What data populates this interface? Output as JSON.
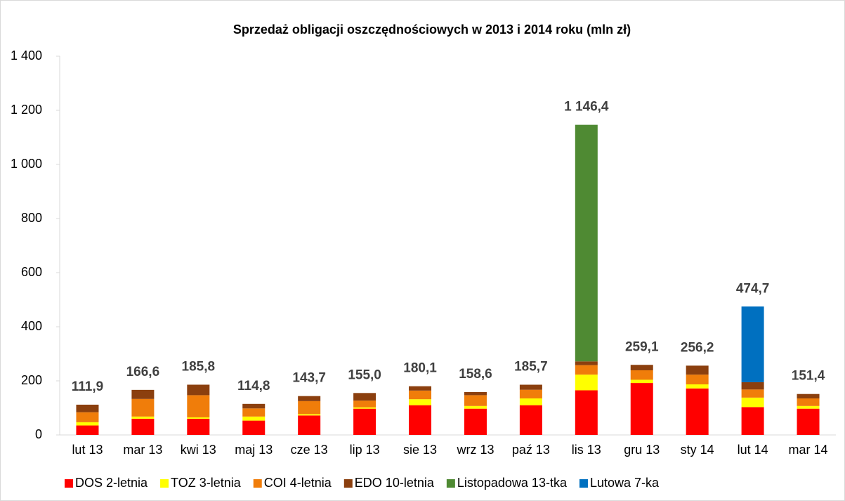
{
  "chart_data": {
    "type": "stacked_bar",
    "title": "Sprzedaż obligacji oszczędnościowych w 2013 i 2014 roku (mln zł)",
    "categories": [
      "lut 13",
      "mar 13",
      "kwi 13",
      "maj 13",
      "cze 13",
      "lip 13",
      "sie 13",
      "wrz 13",
      "paź 13",
      "lis 13",
      "gru 13",
      "sty 14",
      "lut 14",
      "mar 14"
    ],
    "series": [
      {
        "name": "DOS 2-letnia",
        "color": "#ff0000",
        "values": [
          35,
          60,
          60,
          53,
          72,
          97,
          110,
          97,
          110,
          165,
          192,
          172,
          103,
          97
        ]
      },
      {
        "name": "TOZ 3-letnia",
        "color": "#ffff00",
        "values": [
          12,
          8,
          5,
          15,
          5,
          5,
          22,
          10,
          25,
          58,
          12,
          15,
          35,
          10
        ]
      },
      {
        "name": "COI 4-letnia",
        "color": "#f07d0a",
        "values": [
          37,
          65,
          82,
          30,
          48,
          25,
          32,
          40,
          32,
          35,
          35,
          36,
          30,
          28
        ]
      },
      {
        "name": "EDO 10-letnia",
        "color": "#8b3f0e",
        "values": [
          27.9,
          33.6,
          38.8,
          16.8,
          18.7,
          28,
          16.1,
          11.6,
          18.7,
          14,
          20.1,
          33.2,
          27,
          16.4
        ]
      },
      {
        "name": "Listopadowa 13-tka",
        "color": "#4f8a33",
        "values": [
          null,
          null,
          null,
          null,
          null,
          null,
          null,
          null,
          null,
          874.4,
          null,
          null,
          null,
          null
        ]
      },
      {
        "name": "Lutowa 7-ka",
        "color": "#0070c0",
        "values": [
          null,
          null,
          null,
          null,
          null,
          null,
          null,
          null,
          null,
          null,
          null,
          null,
          279.7,
          null
        ]
      }
    ],
    "totals": [
      111.9,
      166.6,
      185.8,
      114.8,
      143.7,
      155.0,
      180.1,
      158.6,
      185.7,
      1146.4,
      259.1,
      256.2,
      474.7,
      151.4
    ],
    "total_labels": [
      "111,9",
      "166,6",
      "185,8",
      "114,8",
      "143,7",
      "155,0",
      "180,1",
      "158,6",
      "185,7",
      "1 146,4",
      "259,1",
      "256,2",
      "474,7",
      "151,4"
    ],
    "ylim": [
      0,
      1400
    ],
    "yticks": [
      0,
      200,
      400,
      600,
      800,
      {
        "value": 1000,
        "label": "1 000"
      },
      {
        "value": 1200,
        "label": "1 200"
      },
      {
        "value": 1400,
        "label": "1 400"
      }
    ],
    "grid": false,
    "legend": "bottom"
  }
}
